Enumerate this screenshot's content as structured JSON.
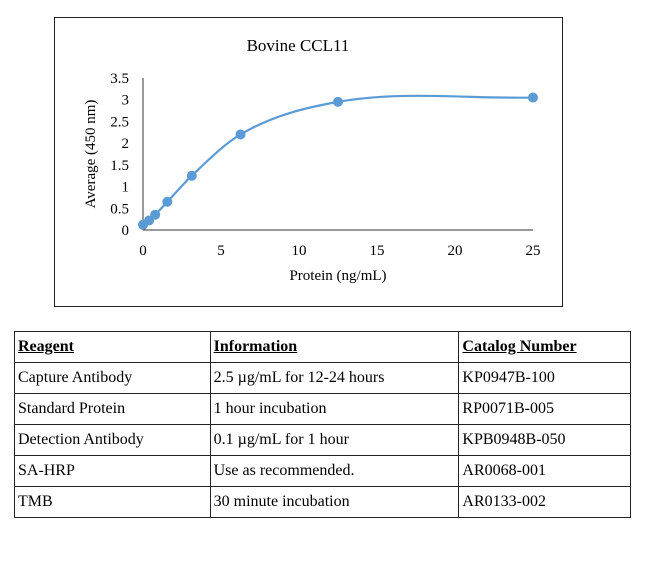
{
  "chart_data": {
    "type": "line",
    "title": "Bovine CCL11",
    "xlabel": "Protein (ng/mL)",
    "ylabel": "Average (450 nm)",
    "xlim": [
      0,
      25
    ],
    "ylim": [
      0,
      3.5
    ],
    "x_ticks": [
      0,
      5,
      10,
      15,
      20,
      25
    ],
    "y_ticks": [
      0,
      0.5,
      1,
      1.5,
      2,
      2.5,
      3,
      3.5
    ],
    "grid": false,
    "legend": "none",
    "color": "#5b9bd5",
    "x": [
      0,
      0.39,
      0.78,
      1.56,
      3.13,
      6.25,
      12.5,
      25
    ],
    "y": [
      0.12,
      0.22,
      0.35,
      0.65,
      1.25,
      2.2,
      2.95,
      3.05
    ]
  },
  "table": {
    "headers": [
      "Reagent",
      "Information",
      "Catalog Number"
    ],
    "rows": [
      [
        "Capture Antibody",
        "2.5 µg/mL for 12-24 hours",
        "KP0947B-100"
      ],
      [
        "Standard Protein",
        "1 hour incubation",
        "RP0071B-005"
      ],
      [
        "Detection Antibody",
        "0.1 µg/mL for 1 hour",
        "KPB0948B-050"
      ],
      [
        "SA-HRP",
        "Use as recommended.",
        "AR0068-001"
      ],
      [
        "TMB",
        "30 minute incubation",
        "AR0133-002"
      ]
    ]
  }
}
